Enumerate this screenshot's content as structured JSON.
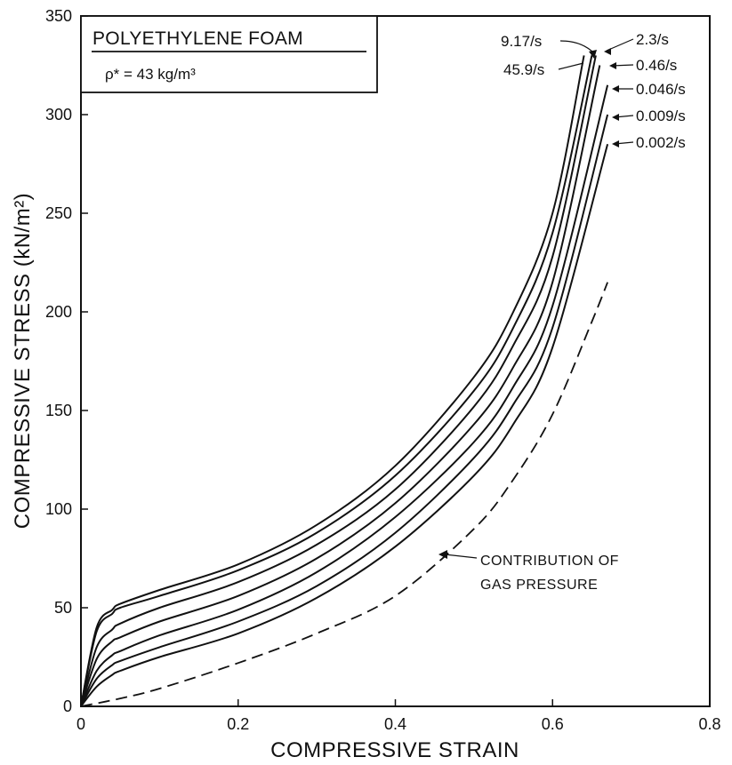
{
  "chart_data": {
    "type": "line",
    "title": "POLYETHYLENE FOAM",
    "subtitle": "ρ* = 43 kg/m³",
    "xlabel": "COMPRESSIVE STRAIN",
    "ylabel": "COMPRESSIVE STRESS (kN/m²)",
    "xlim": [
      0,
      0.8
    ],
    "ylim": [
      0,
      350
    ],
    "xticks": [
      "0",
      "0.2",
      "0.4",
      "0.6",
      "0.8"
    ],
    "yticks": [
      "0",
      "50",
      "100",
      "150",
      "200",
      "250",
      "300",
      "350"
    ],
    "grid": false,
    "series": [
      {
        "name": "45.9/s",
        "dashed": false,
        "x": [
          0,
          0.02,
          0.04,
          0.05,
          0.1,
          0.2,
          0.3,
          0.4,
          0.5,
          0.55,
          0.6,
          0.64
        ],
        "y": [
          0,
          40,
          49,
          52,
          59,
          72,
          92,
          122,
          167,
          200,
          250,
          330
        ]
      },
      {
        "name": "9.17/s",
        "dashed": false,
        "x": [
          0,
          0.02,
          0.04,
          0.05,
          0.1,
          0.2,
          0.3,
          0.4,
          0.5,
          0.55,
          0.6,
          0.65
        ],
        "y": [
          0,
          38,
          47,
          50,
          56,
          69,
          88,
          117,
          160,
          192,
          240,
          330
        ]
      },
      {
        "name": "2.3/s",
        "dashed": false,
        "x": [
          0,
          0.02,
          0.04,
          0.05,
          0.1,
          0.2,
          0.3,
          0.4,
          0.5,
          0.55,
          0.6,
          0.655
        ],
        "y": [
          0,
          30,
          39,
          42,
          50,
          63,
          82,
          110,
          152,
          183,
          228,
          330
        ]
      },
      {
        "name": "0.46/s",
        "dashed": false,
        "x": [
          0,
          0.02,
          0.04,
          0.05,
          0.1,
          0.2,
          0.3,
          0.4,
          0.5,
          0.55,
          0.6,
          0.66
        ],
        "y": [
          0,
          24,
          33,
          35,
          43,
          56,
          75,
          103,
          143,
          172,
          215,
          325
        ]
      },
      {
        "name": "0.046/s",
        "dashed": false,
        "x": [
          0,
          0.02,
          0.04,
          0.05,
          0.1,
          0.2,
          0.3,
          0.4,
          0.5,
          0.55,
          0.6,
          0.67
        ],
        "y": [
          0,
          18,
          26,
          28,
          36,
          49,
          68,
          96,
          134,
          162,
          203,
          315
        ]
      },
      {
        "name": "0.009/s",
        "dashed": false,
        "x": [
          0,
          0.02,
          0.04,
          0.05,
          0.1,
          0.2,
          0.3,
          0.4,
          0.5,
          0.55,
          0.6,
          0.67
        ],
        "y": [
          0,
          14,
          21,
          23,
          30,
          43,
          61,
          88,
          126,
          153,
          192,
          300
        ]
      },
      {
        "name": "0.002/s",
        "dashed": false,
        "x": [
          0,
          0.02,
          0.04,
          0.05,
          0.1,
          0.2,
          0.3,
          0.4,
          0.5,
          0.55,
          0.6,
          0.67
        ],
        "y": [
          0,
          10,
          16,
          18,
          25,
          37,
          55,
          81,
          117,
          143,
          182,
          285
        ]
      },
      {
        "name": "CONTRIBUTION OF GAS PRESSURE",
        "dashed": true,
        "x": [
          0,
          0.05,
          0.1,
          0.2,
          0.3,
          0.4,
          0.5,
          0.55,
          0.6,
          0.65,
          0.67
        ],
        "y": [
          0,
          4,
          9,
          22,
          37,
          56,
          90,
          115,
          148,
          195,
          215
        ]
      }
    ],
    "annotations": [
      "CONTRIBUTION OF",
      "GAS PRESSURE"
    ]
  }
}
